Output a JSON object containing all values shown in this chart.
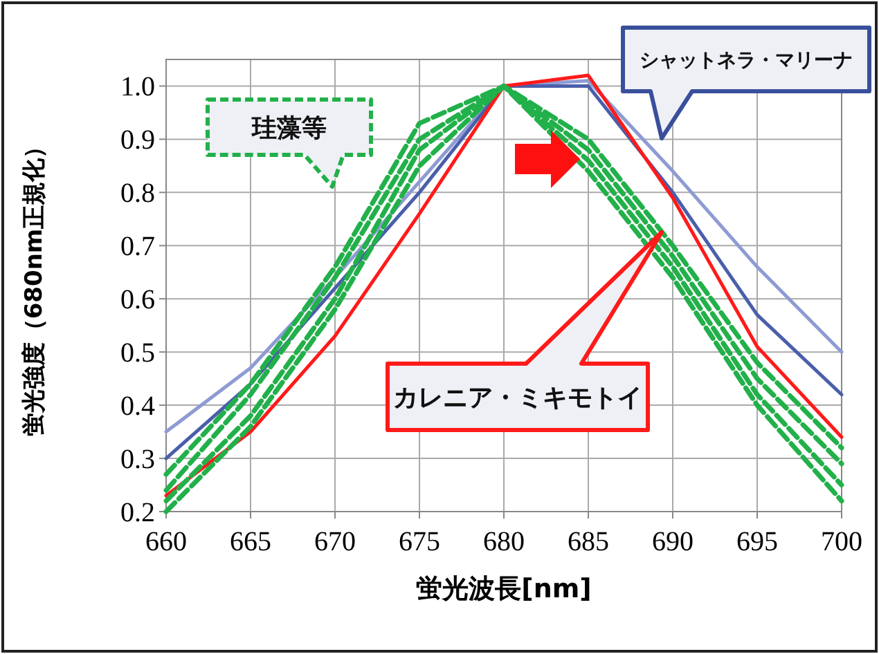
{
  "chart_data": {
    "type": "line",
    "xlabel": "蛍光波長[nm]",
    "ylabel": "蛍光強度（680nm正規化）",
    "x": [
      660,
      665,
      670,
      675,
      680,
      685,
      690,
      695,
      700
    ],
    "xlim": [
      660,
      700
    ],
    "xticks": [
      660,
      665,
      670,
      675,
      680,
      685,
      690,
      695,
      700
    ],
    "ylim": [
      0.2,
      1.05
    ],
    "yticks": [
      {
        "value": 0.2,
        "label": "0.2"
      },
      {
        "value": 0.3,
        "label": "0.3"
      },
      {
        "value": 0.4,
        "label": "0.4"
      },
      {
        "value": 0.5,
        "label": "0.5"
      },
      {
        "value": 0.6,
        "label": "0.6"
      },
      {
        "value": 0.7,
        "label": "0.7"
      },
      {
        "value": 0.8,
        "label": "0.8"
      },
      {
        "value": 0.9,
        "label": "0.9"
      },
      {
        "value": 1.0,
        "label": "1.0"
      }
    ],
    "grid": true,
    "marker": "none",
    "series": [
      {
        "color": "#8e9bd3",
        "line_style": "solid",
        "values": [
          0.35,
          0.47,
          0.64,
          0.82,
          1.0,
          1.01,
          0.84,
          0.66,
          0.5
        ]
      },
      {
        "color": "#4a5faa",
        "line_style": "solid",
        "values": [
          0.3,
          0.44,
          0.62,
          0.8,
          1.0,
          1.0,
          0.8,
          0.57,
          0.42
        ]
      },
      {
        "color": "#ff1a1a",
        "line_style": "solid",
        "values": [
          0.23,
          0.35,
          0.53,
          0.76,
          1.0,
          1.02,
          0.79,
          0.51,
          0.34
        ]
      },
      {
        "color": "#22b04a",
        "line_style": "dashed",
        "values": [
          0.27,
          0.44,
          0.66,
          0.93,
          1.0,
          0.9,
          0.7,
          0.48,
          0.32
        ]
      },
      {
        "color": "#22b04a",
        "line_style": "dashed",
        "values": [
          0.24,
          0.42,
          0.64,
          0.9,
          1.0,
          0.88,
          0.68,
          0.45,
          0.29
        ]
      },
      {
        "color": "#22b04a",
        "line_style": "dashed",
        "values": [
          0.22,
          0.38,
          0.6,
          0.88,
          1.0,
          0.86,
          0.66,
          0.42,
          0.25
        ]
      },
      {
        "color": "#22b04a",
        "line_style": "dashed",
        "values": [
          0.2,
          0.36,
          0.58,
          0.85,
          1.0,
          0.84,
          0.64,
          0.4,
          0.22
        ]
      }
    ],
    "annotations": [
      "珪藻等",
      "シャットネラ・マリーナ",
      "カレニア・ミキモトイ"
    ]
  }
}
